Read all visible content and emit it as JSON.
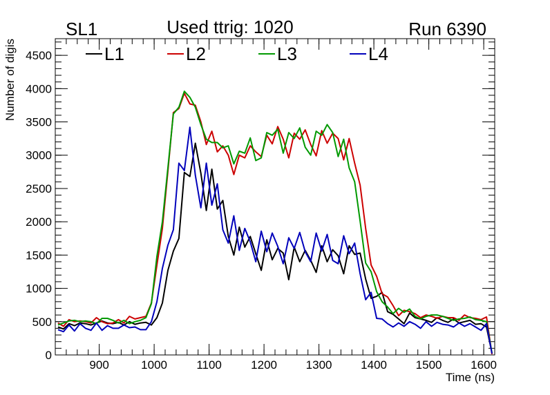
{
  "header": {
    "left_label": "SL1",
    "center_label": "Used ttrig: 1020",
    "right_label": "Run 6390"
  },
  "chart_data": {
    "type": "line",
    "title": "",
    "xlabel": "Time (ns)",
    "ylabel": "Number of digis",
    "xlim": [
      820,
      1620
    ],
    "ylim": [
      0,
      4750
    ],
    "xticks": [
      900,
      1000,
      1100,
      1200,
      1300,
      1400,
      1500,
      1600
    ],
    "yticks": [
      0,
      500,
      1000,
      1500,
      2000,
      2500,
      3000,
      3500,
      4000,
      4500
    ],
    "grid": false,
    "legend_position": "top-left, horizontal",
    "x": [
      825,
      835,
      845,
      855,
      865,
      875,
      885,
      895,
      905,
      915,
      925,
      935,
      945,
      955,
      965,
      975,
      985,
      995,
      1005,
      1015,
      1025,
      1035,
      1045,
      1055,
      1065,
      1075,
      1085,
      1095,
      1105,
      1115,
      1125,
      1135,
      1145,
      1155,
      1165,
      1175,
      1185,
      1195,
      1205,
      1215,
      1225,
      1235,
      1245,
      1255,
      1265,
      1275,
      1285,
      1295,
      1305,
      1315,
      1325,
      1335,
      1345,
      1355,
      1365,
      1375,
      1385,
      1395,
      1405,
      1415,
      1425,
      1435,
      1445,
      1455,
      1465,
      1475,
      1485,
      1495,
      1505,
      1515,
      1525,
      1535,
      1545,
      1555,
      1565,
      1575,
      1585,
      1595,
      1605,
      1615
    ],
    "series": [
      {
        "name": "L1",
        "color": "#000000",
        "values": [
          420,
          390,
          470,
          440,
          480,
          470,
          450,
          480,
          510,
          480,
          470,
          490,
          450,
          500,
          460,
          480,
          490,
          450,
          560,
          780,
          1270,
          1560,
          1750,
          2740,
          2680,
          3180,
          2730,
          2170,
          2790,
          2190,
          2320,
          1780,
          1500,
          1920,
          1620,
          1780,
          1520,
          1270,
          1730,
          1430,
          1600,
          1530,
          1130,
          1620,
          1400,
          1570,
          1420,
          1240,
          1640,
          1400,
          1580,
          1490,
          1220,
          1640,
          1510,
          1530,
          1140,
          850,
          880,
          940,
          650,
          610,
          540,
          470,
          630,
          560,
          540,
          520,
          490,
          560,
          520,
          490,
          540,
          480,
          500,
          520,
          460,
          470,
          420,
          30
        ]
      },
      {
        "name": "L2",
        "color": "#cc0000",
        "values": [
          480,
          430,
          530,
          500,
          510,
          500,
          480,
          560,
          500,
          470,
          480,
          530,
          480,
          580,
          540,
          560,
          580,
          780,
          1350,
          1900,
          2760,
          3640,
          3700,
          3930,
          3770,
          3750,
          3500,
          3160,
          3360,
          3050,
          3140,
          3000,
          2710,
          3000,
          2960,
          3140,
          3050,
          2980,
          3300,
          3170,
          3430,
          3240,
          2960,
          3330,
          3240,
          3380,
          3160,
          2990,
          3370,
          3180,
          3330,
          3250,
          2930,
          3250,
          2880,
          2550,
          1900,
          1350,
          1180,
          920,
          870,
          740,
          590,
          670,
          650,
          620,
          560,
          600,
          580,
          550,
          580,
          560,
          560,
          520,
          600,
          560,
          550,
          530,
          570,
          10
        ]
      },
      {
        "name": "L3",
        "color": "#009900",
        "values": [
          450,
          480,
          510,
          520,
          500,
          510,
          500,
          470,
          550,
          550,
          520,
          480,
          520,
          470,
          500,
          520,
          560,
          770,
          1480,
          2000,
          2810,
          3620,
          3720,
          3960,
          3870,
          3720,
          3460,
          3240,
          3190,
          3190,
          3110,
          3140,
          2870,
          3060,
          3030,
          3260,
          2920,
          2960,
          3340,
          3300,
          3390,
          3030,
          3340,
          3250,
          3410,
          3120,
          3000,
          3360,
          3300,
          3460,
          3340,
          2980,
          3240,
          2810,
          2600,
          2010,
          1380,
          1250,
          950,
          800,
          720,
          620,
          700,
          640,
          690,
          580,
          540,
          580,
          600,
          600,
          580,
          550,
          520,
          540,
          550,
          570,
          530,
          520,
          500,
          30
        ]
      },
      {
        "name": "L4",
        "color": "#0000bb",
        "values": [
          380,
          350,
          450,
          360,
          470,
          400,
          370,
          480,
          370,
          440,
          400,
          400,
          450,
          410,
          420,
          380,
          380,
          500,
          800,
          1300,
          1650,
          1880,
          2880,
          2770,
          3420,
          2700,
          2210,
          2880,
          2250,
          2570,
          1880,
          1680,
          2090,
          1570,
          1900,
          1700,
          1400,
          1860,
          1550,
          1830,
          1630,
          1370,
          1760,
          1600,
          1840,
          1550,
          1400,
          1830,
          1560,
          1810,
          1420,
          1370,
          1790,
          1520,
          1680,
          1220,
          830,
          940,
          550,
          540,
          470,
          420,
          480,
          430,
          500,
          460,
          400,
          500,
          430,
          490,
          460,
          450,
          420,
          480,
          430,
          470,
          420,
          370,
          470,
          20
        ]
      }
    ]
  }
}
